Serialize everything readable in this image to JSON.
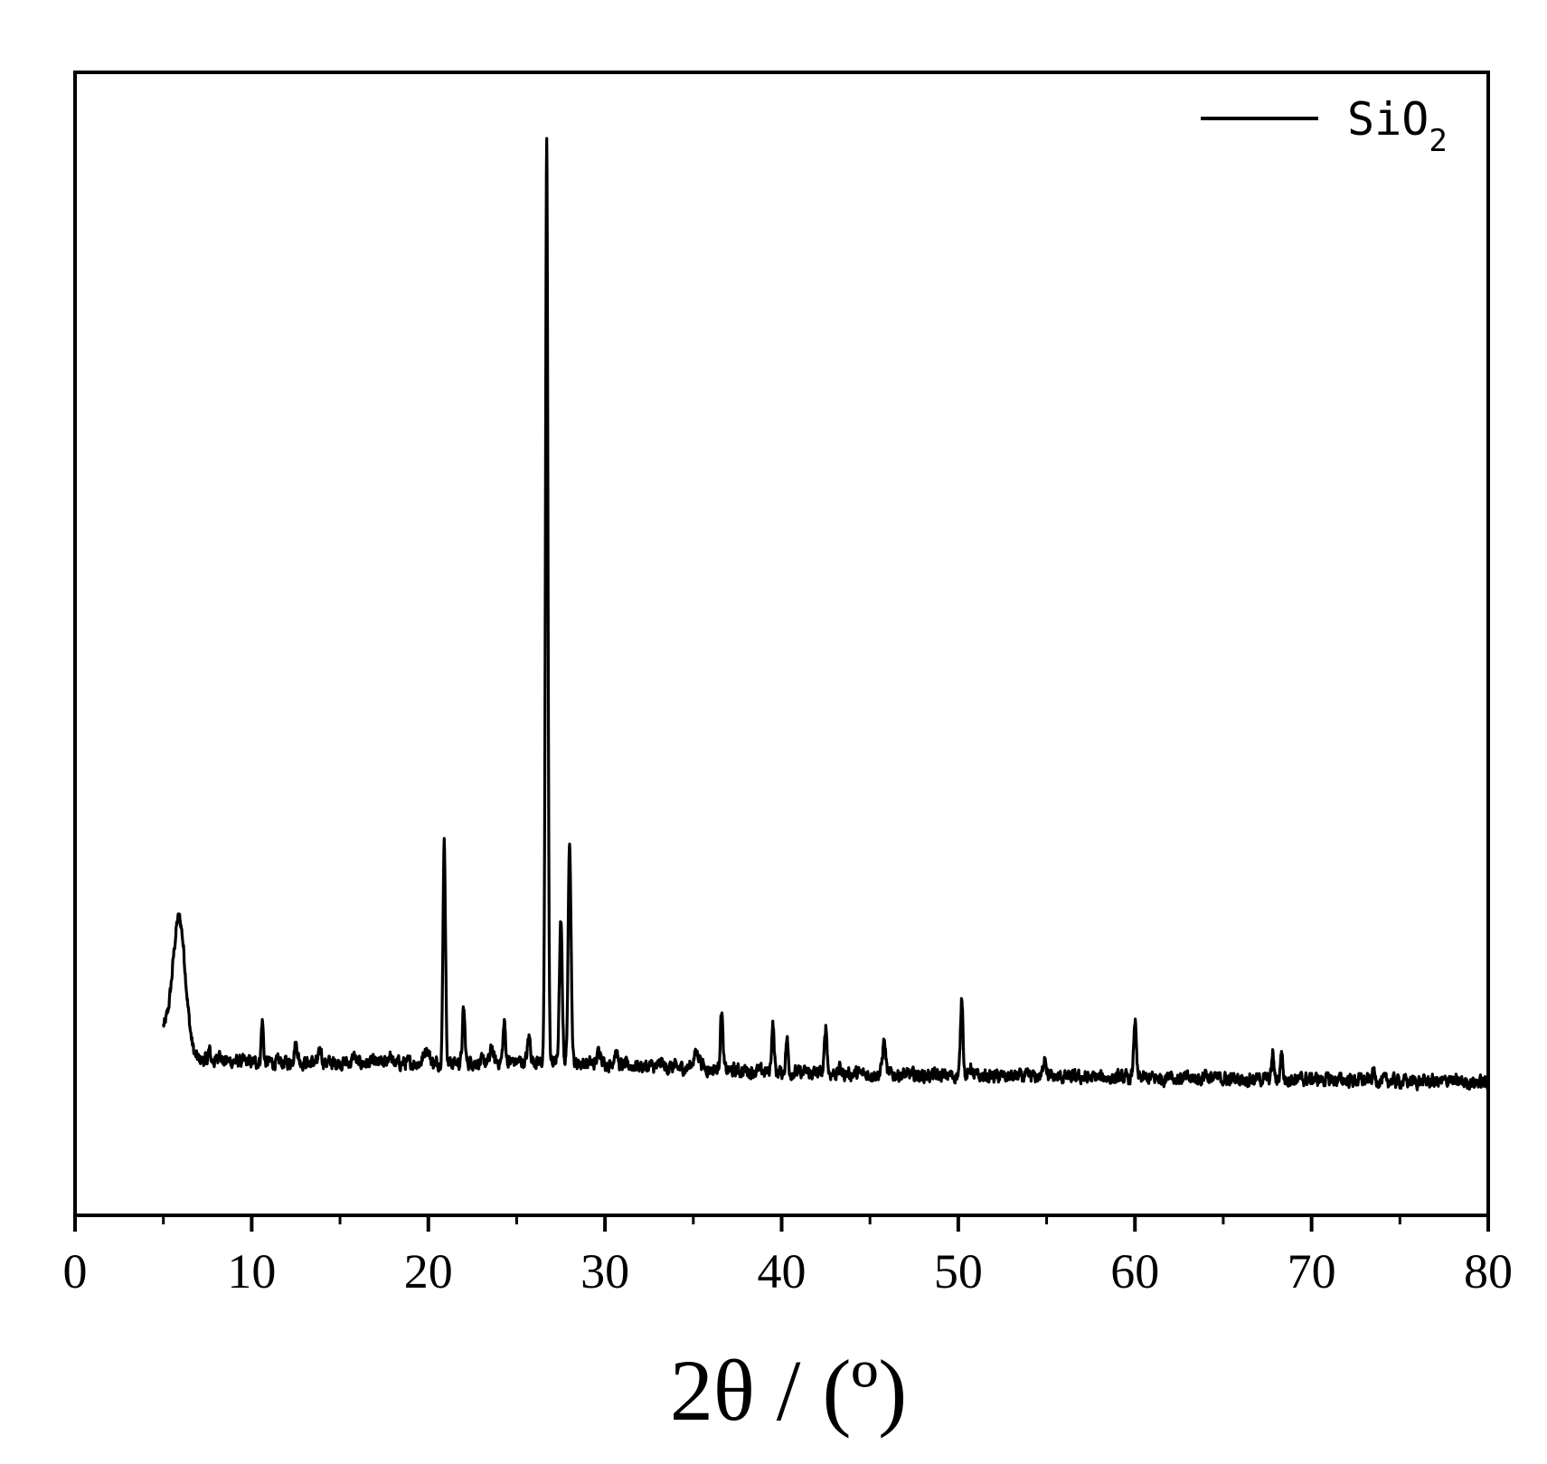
{
  "chart_data": {
    "type": "line",
    "title": "",
    "xlabel": "2θ / (º)",
    "ylabel": "",
    "xlim": [
      0,
      80
    ],
    "ylim": [
      0,
      100
    ],
    "y_ticks_shown": false,
    "grid": false,
    "legend_position": "top-right",
    "x_major_ticks": [
      0,
      10,
      20,
      30,
      40,
      50,
      60,
      70,
      80
    ],
    "x_tick_labels": [
      "0",
      "10",
      "20",
      "30",
      "40",
      "50",
      "60",
      "70",
      "80"
    ],
    "x_minor_ticks": [
      5,
      15,
      25,
      35,
      45,
      55,
      65,
      75
    ],
    "series": [
      {
        "name": "SiO",
        "name_subscript": "2",
        "color": "#000000",
        "x_range": [
          5,
          80
        ],
        "baseline": [
          [
            5,
            16.2
          ],
          [
            6.8,
            13.6
          ],
          [
            10,
            13.4
          ],
          [
            20,
            13.3
          ],
          [
            26,
            13.5
          ],
          [
            30,
            13.2
          ],
          [
            40,
            12.5
          ],
          [
            50,
            12.2
          ],
          [
            60,
            12.0
          ],
          [
            70,
            11.9
          ],
          [
            80,
            11.6
          ]
        ],
        "peaks": [
          {
            "x": 5.9,
            "y": 26.0,
            "w": 0.35
          },
          {
            "x": 7.6,
            "y": 14.4,
            "w": 0.06
          },
          {
            "x": 8.2,
            "y": 14.6,
            "w": 0.06
          },
          {
            "x": 10.6,
            "y": 17.0,
            "w": 0.06
          },
          {
            "x": 12.5,
            "y": 15.0,
            "w": 0.1
          },
          {
            "x": 13.9,
            "y": 14.6,
            "w": 0.07
          },
          {
            "x": 15.8,
            "y": 14.0,
            "w": 0.07
          },
          {
            "x": 17.8,
            "y": 14.1,
            "w": 0.08
          },
          {
            "x": 19.9,
            "y": 14.6,
            "w": 0.15
          },
          {
            "x": 20.9,
            "y": 33.0,
            "w": 0.07
          },
          {
            "x": 22.0,
            "y": 18.0,
            "w": 0.07
          },
          {
            "x": 23.6,
            "y": 14.8,
            "w": 0.07
          },
          {
            "x": 24.3,
            "y": 16.8,
            "w": 0.07
          },
          {
            "x": 25.7,
            "y": 15.6,
            "w": 0.08
          },
          {
            "x": 26.7,
            "y": 94.0,
            "w": 0.07
          },
          {
            "x": 27.5,
            "y": 25.5,
            "w": 0.08
          },
          {
            "x": 28.0,
            "y": 33.0,
            "w": 0.08
          },
          {
            "x": 29.7,
            "y": 14.5,
            "w": 0.12
          },
          {
            "x": 30.6,
            "y": 14.4,
            "w": 0.1
          },
          {
            "x": 33.2,
            "y": 13.4,
            "w": 0.08
          },
          {
            "x": 35.2,
            "y": 14.2,
            "w": 0.2
          },
          {
            "x": 36.6,
            "y": 18.0,
            "w": 0.07
          },
          {
            "x": 39.5,
            "y": 16.8,
            "w": 0.07
          },
          {
            "x": 40.3,
            "y": 15.4,
            "w": 0.07
          },
          {
            "x": 42.5,
            "y": 16.6,
            "w": 0.07
          },
          {
            "x": 43.3,
            "y": 12.9,
            "w": 0.06
          },
          {
            "x": 45.8,
            "y": 15.2,
            "w": 0.09
          },
          {
            "x": 50.2,
            "y": 19.2,
            "w": 0.07
          },
          {
            "x": 50.7,
            "y": 13.1,
            "w": 0.06
          },
          {
            "x": 54.9,
            "y": 14.1,
            "w": 0.08
          },
          {
            "x": 60.0,
            "y": 17.2,
            "w": 0.07
          },
          {
            "x": 62.0,
            "y": 12.6,
            "w": 0.08
          },
          {
            "x": 64.0,
            "y": 12.6,
            "w": 0.08
          },
          {
            "x": 67.8,
            "y": 14.2,
            "w": 0.06
          },
          {
            "x": 68.3,
            "y": 14.4,
            "w": 0.06
          },
          {
            "x": 73.5,
            "y": 12.6,
            "w": 0.06
          },
          {
            "x": 77.8,
            "y": 12.2,
            "w": 0.06
          }
        ]
      }
    ]
  }
}
